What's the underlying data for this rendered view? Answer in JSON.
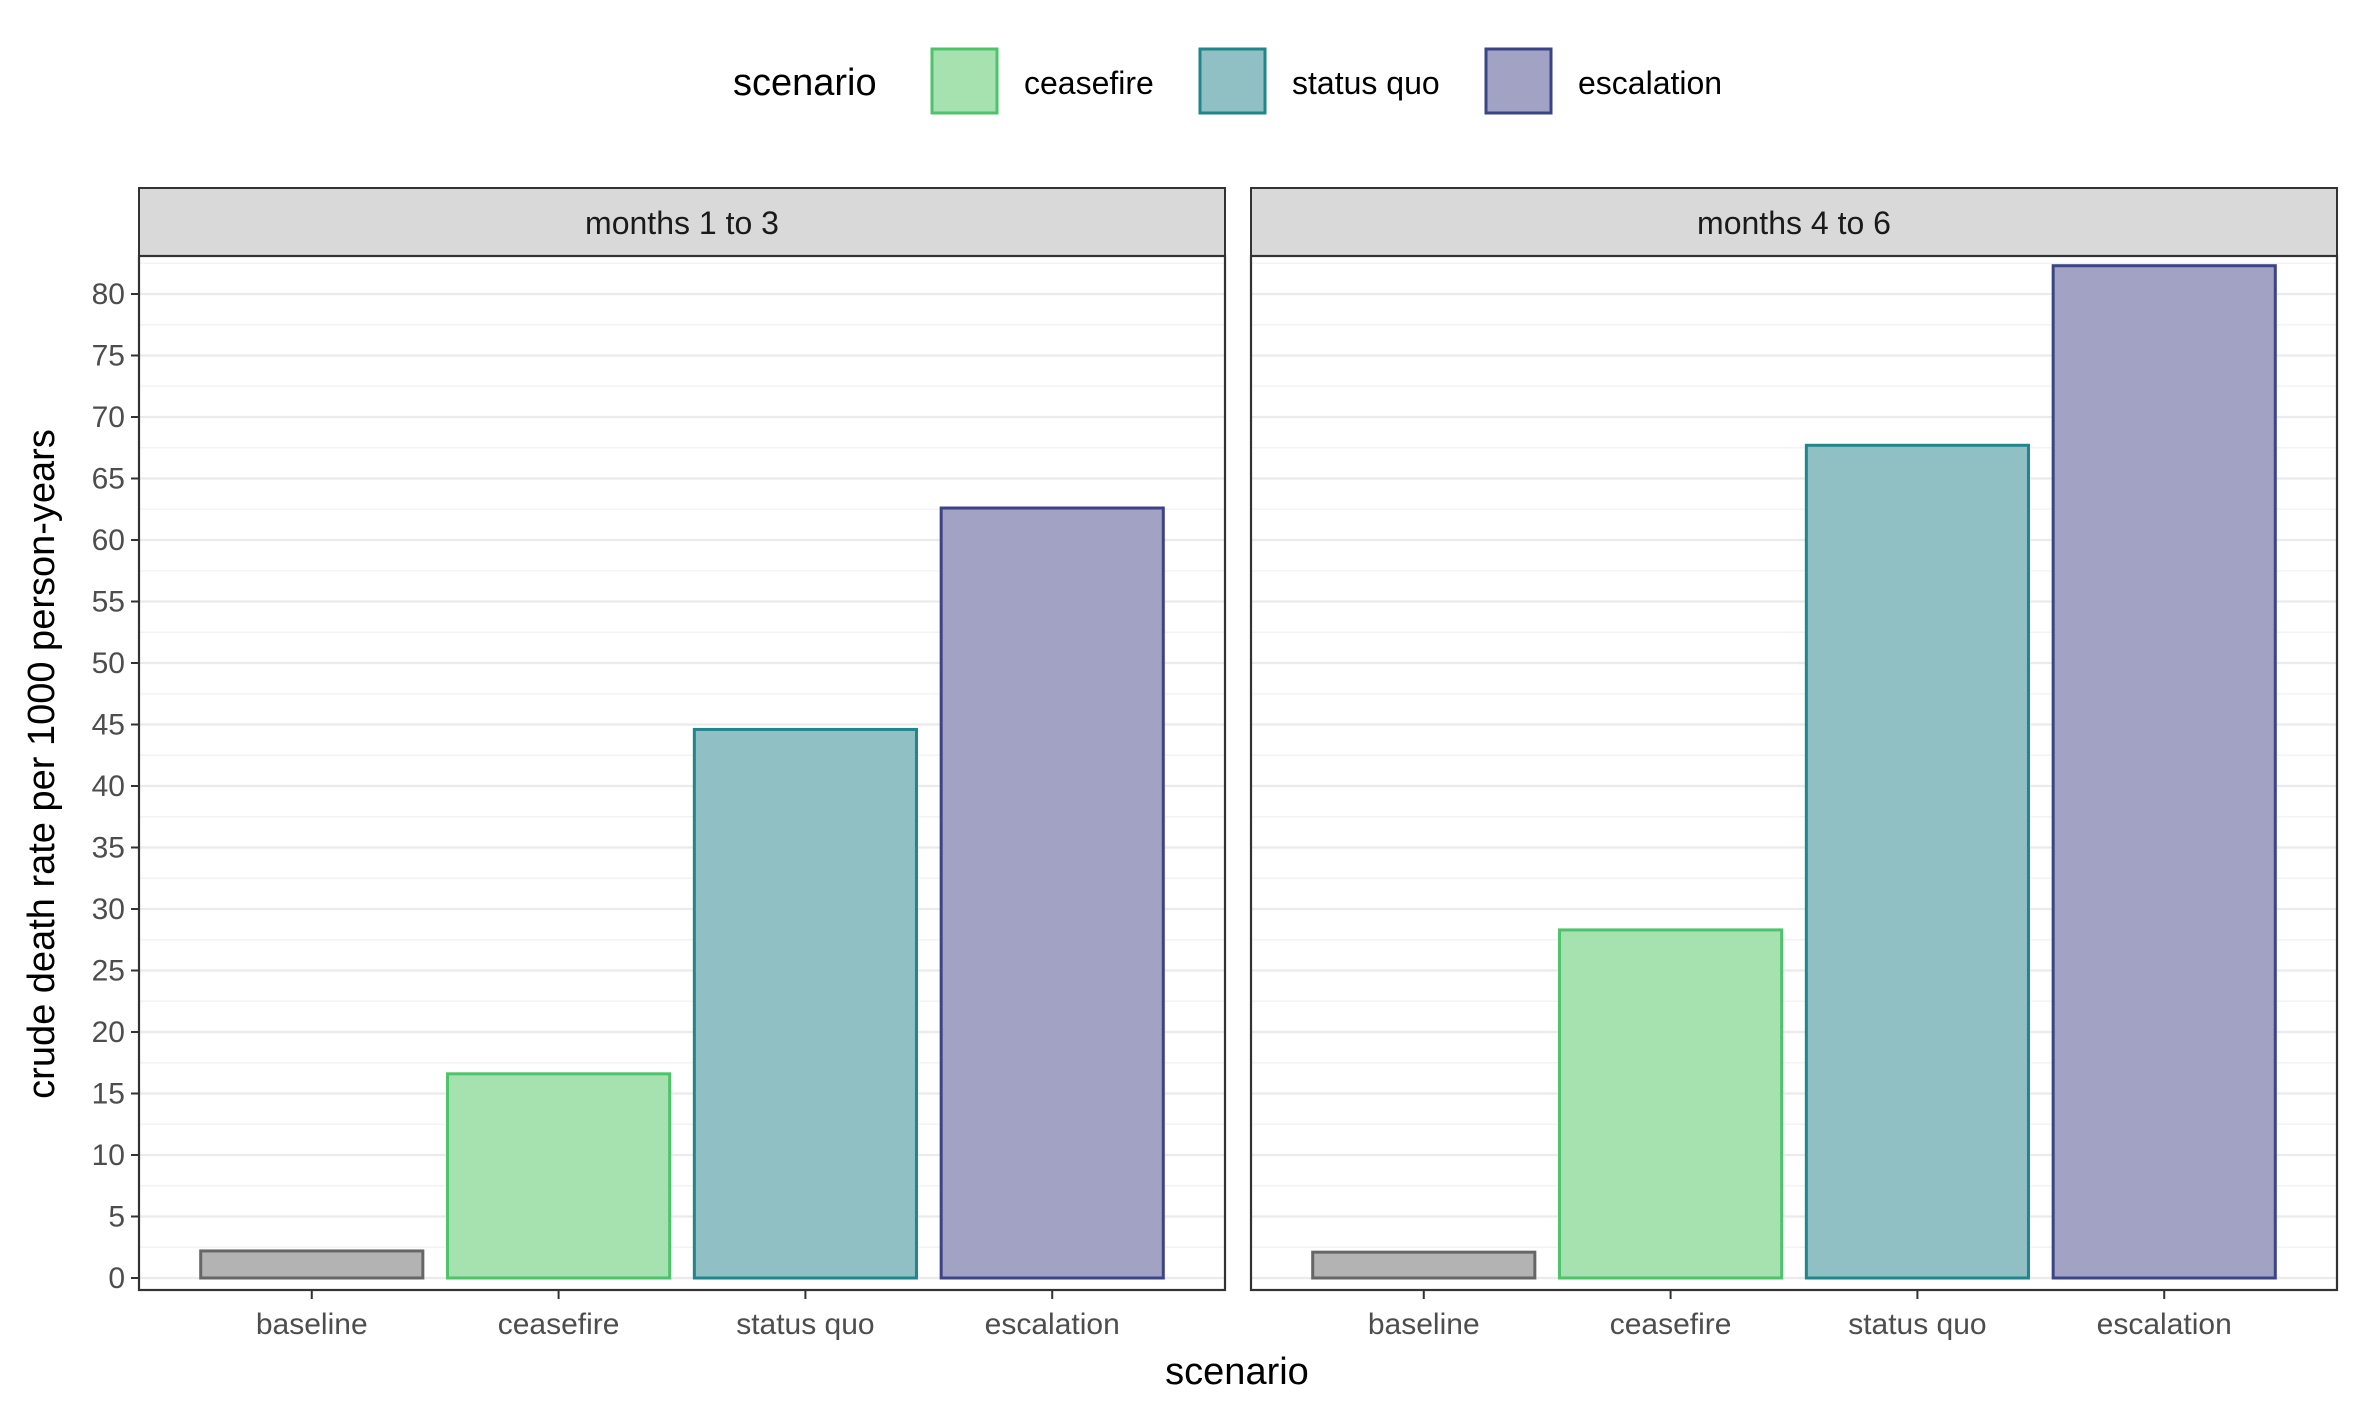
{
  "chart_data": {
    "type": "bar",
    "facet_variable": "period",
    "categories": [
      "baseline",
      "ceasefire",
      "status quo",
      "escalation"
    ],
    "panels": [
      {
        "label": "months 1 to 3",
        "values": [
          2.2,
          16.6,
          44.6,
          62.6
        ]
      },
      {
        "label": "months 4 to 6",
        "values": [
          2.1,
          28.3,
          67.7,
          82.3
        ]
      }
    ],
    "xlabel": "scenario",
    "ylabel": "crude death rate per 1000 person-years",
    "ylim": [
      0,
      82.3
    ],
    "yticks": [
      0,
      5,
      10,
      15,
      20,
      25,
      30,
      35,
      40,
      45,
      50,
      55,
      60,
      65,
      70,
      75,
      80
    ],
    "grid": true,
    "legend": {
      "title": "scenario",
      "position": "top",
      "entries": [
        {
          "label": "ceasefire",
          "fill": "#a6e1b0",
          "stroke": "#4ec36b"
        },
        {
          "label": "status quo",
          "fill": "#90c0c4",
          "stroke": "#21868b"
        },
        {
          "label": "escalation",
          "fill": "#a2a2c5",
          "stroke": "#3c4485"
        }
      ]
    },
    "colors": {
      "baseline": {
        "fill": "#b3b3b3",
        "stroke": "#666666"
      },
      "ceasefire": {
        "fill": "#a6e1b0",
        "stroke": "#4ec36b"
      },
      "status quo": {
        "fill": "#90c0c4",
        "stroke": "#21868b"
      },
      "escalation": {
        "fill": "#a2a2c5",
        "stroke": "#3c4485"
      }
    }
  }
}
